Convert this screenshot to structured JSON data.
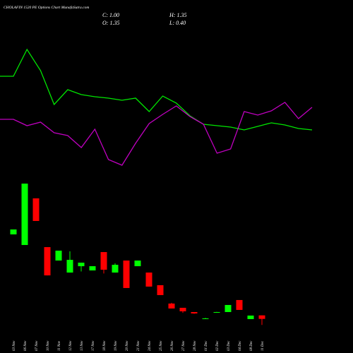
{
  "chart_data": {
    "type": "candlestick",
    "title": "CHOLAFIN 1520 PE Options Chart MunafaSutra.com",
    "ohlc_labels": {
      "close": "C: 1.00",
      "high": "H: 1.35",
      "open": "O: 1.35",
      "low": "L: 0.40"
    },
    "categories": [
      "03 Nov",
      "06 Nov",
      "07 Nov",
      "10 Nov",
      "11 Nov",
      "12 Nov",
      "13 Nov",
      "17 Nov",
      "18 Nov",
      "19 Nov",
      "20 Nov",
      "21 Nov",
      "24 Nov",
      "25 Nov",
      "26 Nov",
      "27 Nov",
      "28 Nov",
      "01 Dec",
      "02 Dec",
      "03 Dec",
      "04 Dec",
      "08 Dec",
      "11 Dec"
    ],
    "open": [
      9.37,
      8.32,
      12.94,
      8.11,
      6.78,
      5.59,
      6.22,
      5.8,
      7.62,
      5.59,
      6.78,
      6.22,
      5.59,
      4.34,
      2.52,
      2.1,
      1.68,
      1.05,
      1.68,
      1.68,
      2.87,
      0.98,
      1.35
    ],
    "high": [
      9.86,
      14.4,
      12.94,
      8.11,
      7.76,
      7.69,
      6.57,
      6.22,
      7.62,
      6.5,
      6.78,
      6.78,
      5.59,
      4.34,
      2.6,
      2.1,
      1.68,
      1.1,
      1.7,
      2.38,
      2.87,
      1.33,
      1.35
    ],
    "low": [
      9.37,
      8.32,
      10.7,
      5.31,
      6.78,
      5.59,
      5.7,
      5.8,
      5.5,
      5.59,
      4.06,
      6.22,
      4.2,
      3.36,
      2.03,
      1.6,
      1.5,
      1.0,
      1.65,
      1.68,
      1.89,
      0.98,
      0.4
    ],
    "close": [
      9.86,
      14.4,
      10.7,
      5.31,
      7.76,
      6.85,
      6.57,
      6.22,
      5.87,
      6.36,
      4.06,
      6.78,
      4.2,
      3.36,
      2.03,
      1.75,
      1.54,
      1.05,
      1.68,
      2.38,
      1.89,
      1.33,
      1.0
    ],
    "up_color": "#00ff00",
    "down_color": "#ff0000",
    "ylim": [
      0,
      15
    ],
    "lines": [
      {
        "color": "#00e600",
        "values": [
          192,
          230,
          200,
          152,
          173,
          166,
          163,
          161,
          158,
          161,
          142,
          164,
          154,
          136,
          124,
          122,
          120,
          116,
          121,
          126,
          123,
          118,
          116
        ]
      },
      {
        "color": "#c000c0",
        "values": [
          131,
          122,
          127,
          112,
          108,
          91,
          117,
          74,
          66,
          97,
          125,
          138,
          150,
          135,
          124,
          83,
          89,
          142,
          137,
          143,
          155,
          132,
          148
        ]
      }
    ],
    "line_ylim": [
      0,
      300
    ]
  }
}
